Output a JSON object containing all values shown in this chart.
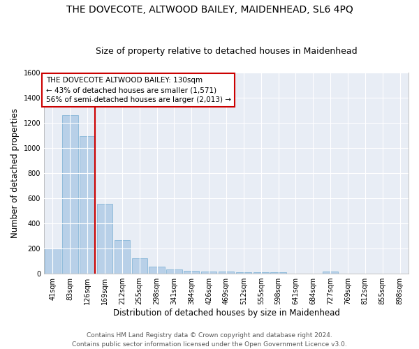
{
  "title": "THE DOVECOTE, ALTWOOD BAILEY, MAIDENHEAD, SL6 4PQ",
  "subtitle": "Size of property relative to detached houses in Maidenhead",
  "xlabel": "Distribution of detached houses by size in Maidenhead",
  "ylabel": "Number of detached properties",
  "bar_color": "#b8d0e8",
  "bar_edge_color": "#7aafd4",
  "background_color": "#e8edf5",
  "grid_color": "white",
  "categories": [
    "41sqm",
    "83sqm",
    "126sqm",
    "169sqm",
    "212sqm",
    "255sqm",
    "298sqm",
    "341sqm",
    "384sqm",
    "426sqm",
    "469sqm",
    "512sqm",
    "555sqm",
    "598sqm",
    "641sqm",
    "684sqm",
    "727sqm",
    "769sqm",
    "812sqm",
    "855sqm",
    "898sqm"
  ],
  "values": [
    200,
    1265,
    1095,
    555,
    270,
    120,
    58,
    35,
    25,
    18,
    15,
    14,
    14,
    13,
    0,
    0,
    18,
    0,
    0,
    0,
    0
  ],
  "ylim": [
    0,
    1600
  ],
  "yticks": [
    0,
    200,
    400,
    600,
    800,
    1000,
    1200,
    1400,
    1600
  ],
  "vline_x": 2,
  "vline_color": "#cc0000",
  "annotation_title": "THE DOVECOTE ALTWOOD BAILEY: 130sqm",
  "annotation_line1": "← 43% of detached houses are smaller (1,571)",
  "annotation_line2": "56% of semi-detached houses are larger (2,013) →",
  "annotation_box_color": "#cc0000",
  "footer_line1": "Contains HM Land Registry data © Crown copyright and database right 2024.",
  "footer_line2": "Contains public sector information licensed under the Open Government Licence v3.0.",
  "title_fontsize": 10,
  "subtitle_fontsize": 9,
  "axis_label_fontsize": 8.5,
  "tick_fontsize": 7,
  "footer_fontsize": 6.5,
  "annotation_fontsize": 7.5
}
